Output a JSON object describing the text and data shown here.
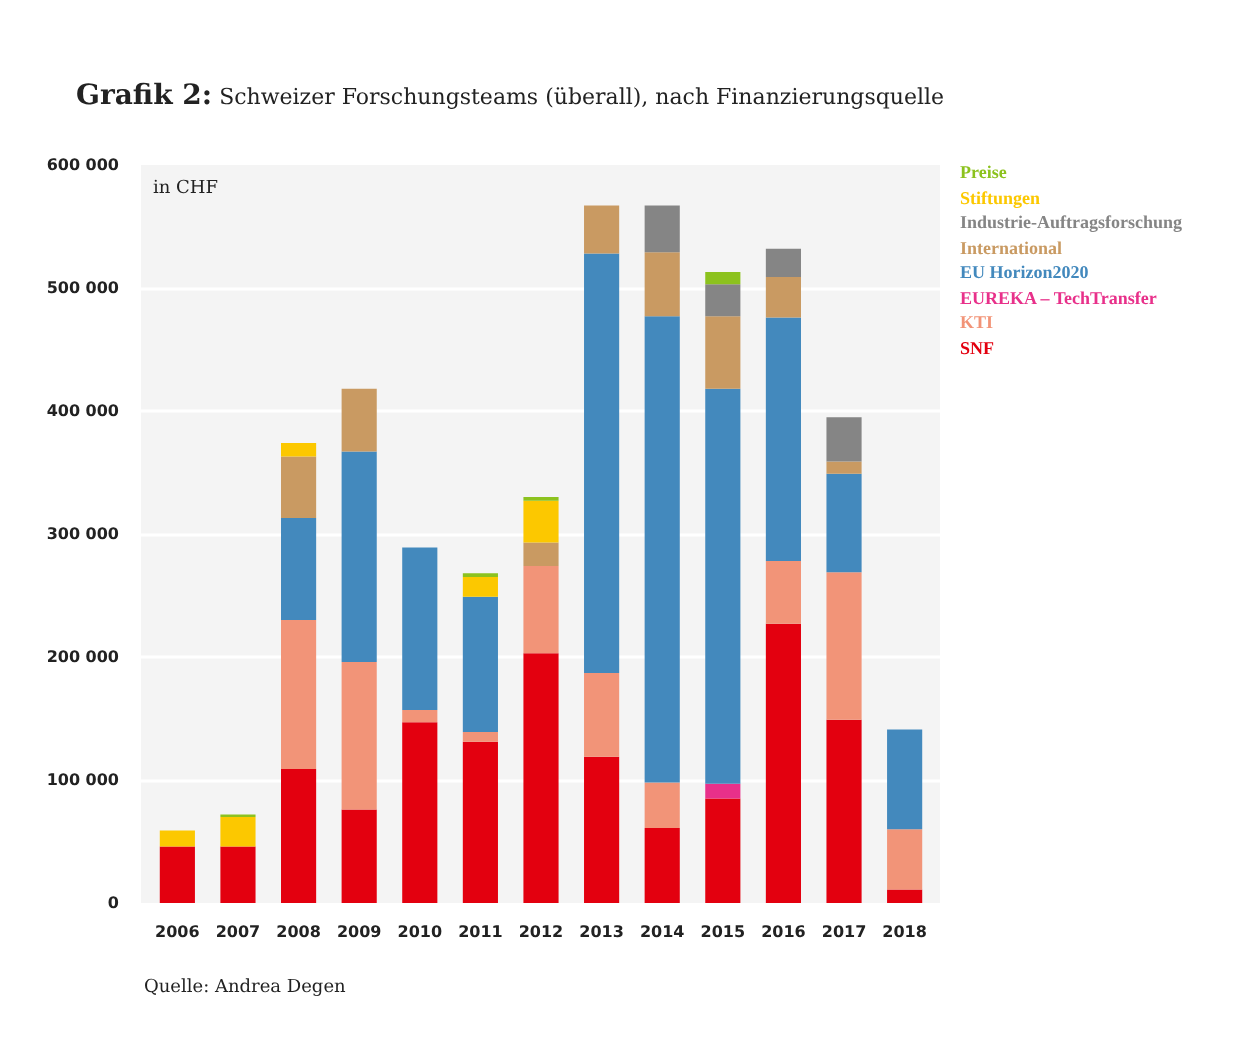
{
  "chart_data": {
    "type": "bar",
    "stacked": true,
    "title": "Grafik 2: Schweizer Forschungsteams (überall), nach Finanzierungsquelle",
    "ylabel": "in CHF",
    "categories": [
      "2006",
      "2007",
      "2008",
      "2009",
      "2010",
      "2011",
      "2012",
      "2013",
      "2014",
      "2015",
      "2016",
      "2017",
      "2018"
    ],
    "series": [
      {
        "name": "SNF",
        "color": "#e3000f",
        "values": [
          46000,
          46000,
          109000,
          76000,
          147000,
          131000,
          203000,
          119000,
          61000,
          85000,
          227000,
          149000,
          11000
        ]
      },
      {
        "name": "KTI",
        "color": "#f29478",
        "values": [
          null,
          null,
          121000,
          120000,
          10000,
          8000,
          71000,
          68000,
          37000,
          null,
          51000,
          120000,
          49000
        ]
      },
      {
        "name": "EUREKA – TechTransfer",
        "color": "#e8308a",
        "values": [
          null,
          null,
          null,
          null,
          null,
          null,
          null,
          null,
          null,
          12000,
          null,
          null,
          null
        ]
      },
      {
        "name": "EU Horizon2020",
        "color": "#4389bd",
        "values": [
          null,
          null,
          83000,
          171000,
          132000,
          110000,
          null,
          341000,
          379000,
          321000,
          198000,
          80000,
          81000
        ]
      },
      {
        "name": "International",
        "color": "#c99a62",
        "values": [
          null,
          null,
          50000,
          51000,
          null,
          null,
          19000,
          39000,
          52000,
          59000,
          33000,
          10000,
          null
        ]
      },
      {
        "name": "Industrie-Auftragsforschung",
        "color": "#858585",
        "values": [
          null,
          null,
          null,
          null,
          null,
          null,
          null,
          null,
          38000,
          26000,
          23000,
          36000,
          null
        ]
      },
      {
        "name": "Stiftungen",
        "color": "#fcc800",
        "values": [
          13000,
          24000,
          11000,
          null,
          null,
          16000,
          34000,
          null,
          null,
          null,
          null,
          null,
          null
        ]
      },
      {
        "name": "Preise",
        "color": "#8cc21e",
        "values": [
          null,
          2000,
          null,
          null,
          null,
          3000,
          3000,
          null,
          null,
          10000,
          null,
          null,
          null
        ]
      }
    ],
    "ylim": [
      0,
      600000
    ],
    "yticks": [
      0,
      {
        "value": 100000,
        "label": "100 000"
      },
      {
        "value": 200000,
        "label": "200 000"
      },
      {
        "value": 300000,
        "label": "300 000"
      },
      {
        "value": 400000,
        "label": "400 000"
      },
      {
        "value": 500000,
        "label": "500 000"
      },
      {
        "value": 600000,
        "label": "600 000"
      }
    ],
    "grid": "y",
    "annotations": [
      "Quelle: Andrea Degen"
    ]
  }
}
